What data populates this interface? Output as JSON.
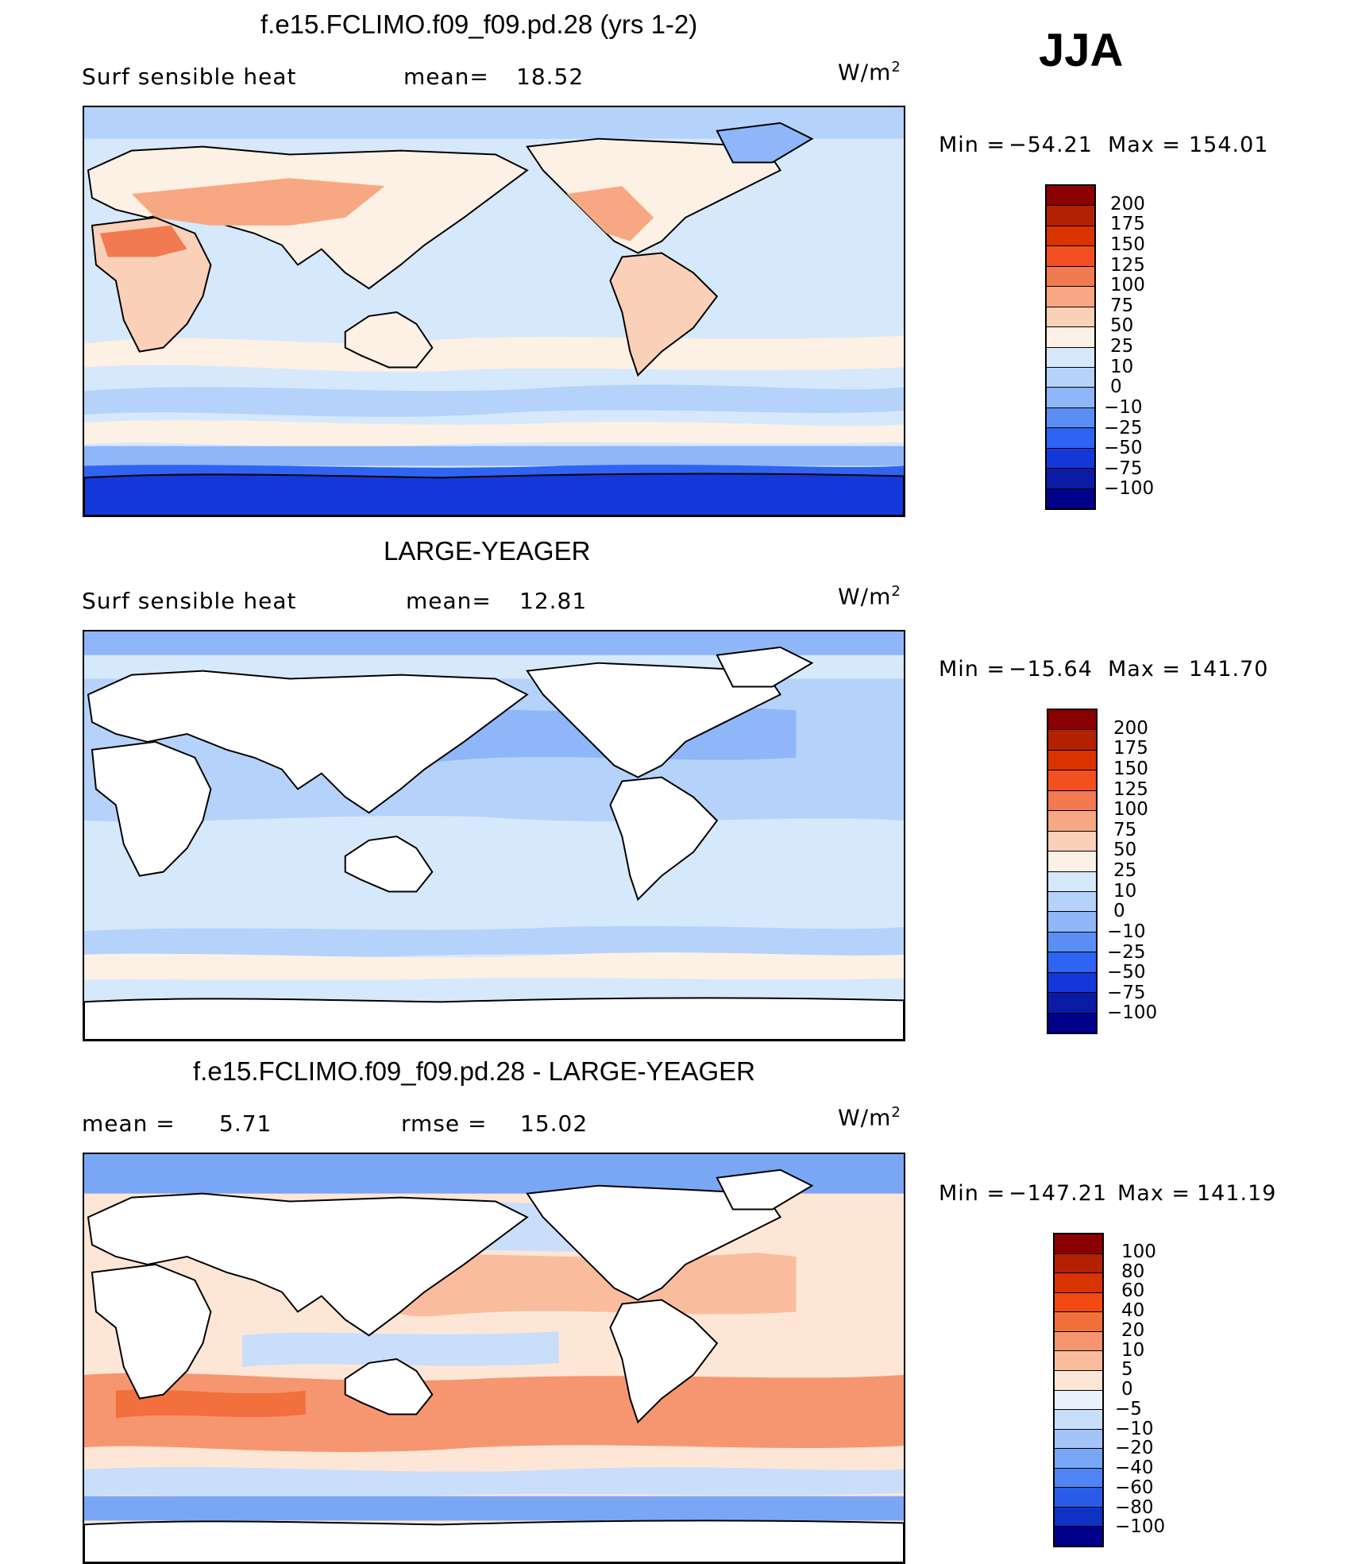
{
  "season": "JJA",
  "panels": [
    {
      "title": "f.e15.FCLIMO.f09_f09.pd.28 (yrs 1-2)",
      "left_label": "Surf  sensible  heat",
      "stat1_label": "mean=",
      "stat1_value": "18.52",
      "stat2_label": "",
      "stat2_value": "",
      "units": "W/m",
      "units_sup": "2",
      "min_label": "Min  =",
      "min_value": "−54.21",
      "max_label": "Max  =",
      "max_value": "154.01",
      "colorbar_levels": [
        "200",
        "175",
        "150",
        "125",
        "100",
        "75",
        "50",
        "25",
        "10",
        "0",
        "−10",
        "−25",
        "−50",
        "−75",
        "−100"
      ],
      "colorbar_colors": [
        "#8b0000",
        "#b22200",
        "#d93300",
        "#f25020",
        "#f27a50",
        "#f7a882",
        "#fbd0b8",
        "#fdf0e4",
        "#d6e8fb",
        "#b5d2fa",
        "#8fb6f8",
        "#5b8ef5",
        "#2f63f2",
        "#1338d9",
        "#0a1ba6",
        "#00008b"
      ]
    },
    {
      "title": "LARGE-YEAGER",
      "left_label": "Surf  sensible  heat",
      "stat1_label": "mean=",
      "stat1_value": "12.81",
      "stat2_label": "",
      "stat2_value": "",
      "units": "W/m",
      "units_sup": "2",
      "min_label": "Min  =",
      "min_value": "−15.64",
      "max_label": "Max  =",
      "max_value": "141.70",
      "colorbar_levels": [
        "200",
        "175",
        "150",
        "125",
        "100",
        "75",
        "50",
        "25",
        "10",
        "0",
        "−10",
        "−25",
        "−50",
        "−75",
        "−100"
      ],
      "colorbar_colors": [
        "#8b0000",
        "#b22200",
        "#d93300",
        "#f25020",
        "#f27a50",
        "#f7a882",
        "#fbd0b8",
        "#fdf0e4",
        "#d6e8fb",
        "#b5d2fa",
        "#8fb6f8",
        "#5b8ef5",
        "#2f63f2",
        "#1338d9",
        "#0a1ba6",
        "#00008b"
      ]
    },
    {
      "title": "f.e15.FCLIMO.f09_f09.pd.28 - LARGE-YEAGER",
      "left_label": "mean  =",
      "stat1_label": "",
      "stat1_value": "5.71",
      "stat2_label": "rmse  =",
      "stat2_value": "15.02",
      "units": "W/m",
      "units_sup": "2",
      "min_label": "Min  =",
      "min_value": "−147.21",
      "max_label": "Max  =",
      "max_value": "141.19",
      "colorbar_levels": [
        "100",
        "80",
        "60",
        "40",
        "20",
        "10",
        "5",
        "0",
        "−5",
        "−10",
        "−20",
        "−40",
        "−60",
        "−80",
        "−100"
      ],
      "colorbar_colors": [
        "#8b0000",
        "#b22200",
        "#d93300",
        "#f24a10",
        "#f2703c",
        "#f69670",
        "#f9bd9e",
        "#fde6d6",
        "#e8f2fd",
        "#c8defb",
        "#a2c4f9",
        "#7aa6f6",
        "#4f84f4",
        "#2a5ce8",
        "#1032c4",
        "#00008b"
      ]
    }
  ]
}
